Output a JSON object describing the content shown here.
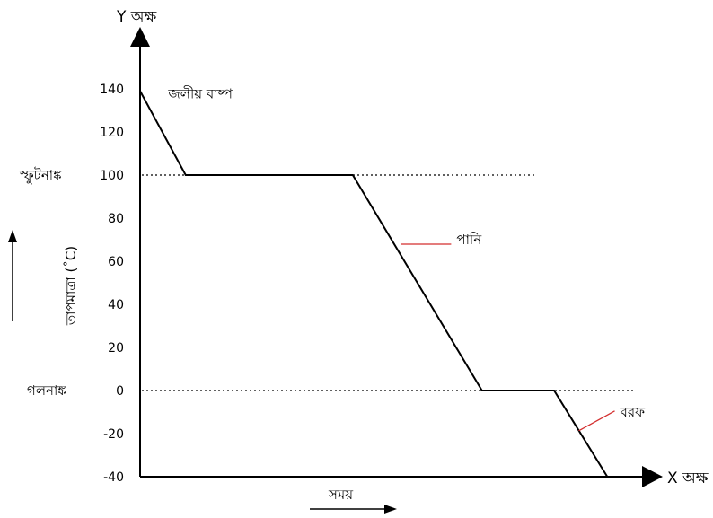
{
  "chart_data": {
    "type": "line",
    "y_axis_name": "Y অক্ষ",
    "x_axis_name": "X অক্ষ",
    "ylabel": "তাপমাত্রা (˚C)",
    "xlabel": "সময়",
    "yticks": [
      140,
      120,
      100,
      80,
      60,
      40,
      20,
      0,
      -20,
      -40
    ],
    "ylim": [
      -40,
      155
    ],
    "x_description": "time (no numeric ticks)",
    "series": [
      {
        "points": [
          {
            "t": 0,
            "y": 139
          },
          {
            "t": 1.2,
            "y": 100
          },
          {
            "t": 5.6,
            "y": 100
          },
          {
            "t": 9.0,
            "y": 0
          },
          {
            "t": 10.9,
            "y": 0
          },
          {
            "t": 12.3,
            "y": -40
          }
        ]
      }
    ],
    "reference_lines": [
      {
        "y": 100,
        "label": "স্ফুটনাঙ্ক",
        "style": "dotted"
      },
      {
        "y": 0,
        "label": "গলনাঙ্ক",
        "style": "dotted"
      }
    ],
    "annotations": [
      {
        "text": "জলীয় বাষ্প",
        "t": 0.6,
        "y": 139
      },
      {
        "text": "পানি",
        "t": 8.0,
        "y": 70,
        "pointer_color": "#d32f2f"
      },
      {
        "text": "বরফ",
        "t": 12.4,
        "y": -12,
        "pointer_color": "#d32f2f"
      }
    ],
    "colors": {
      "line": "#000000",
      "pointer": "#d32f2f"
    }
  }
}
